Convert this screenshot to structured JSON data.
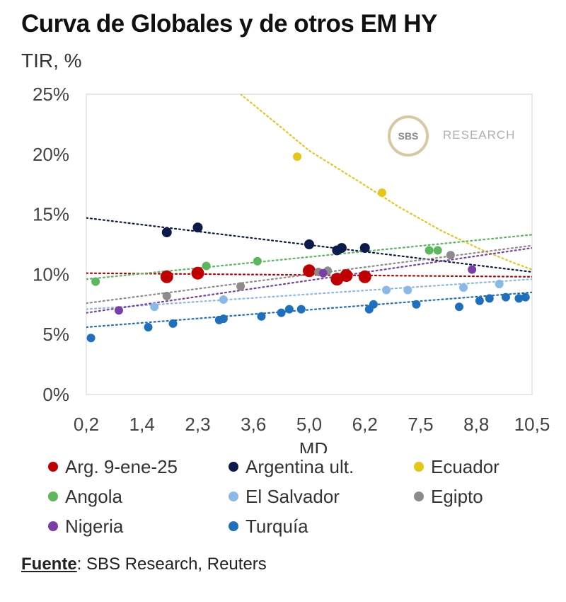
{
  "header": {
    "title": "Curva de Globales y de otros EM HY",
    "subtitle": "TIR, %"
  },
  "logo": {
    "mark": "SBS",
    "text": "RESEARCH"
  },
  "source": {
    "label": "Fuente",
    "text": ": SBS Research, Reuters"
  },
  "chart_data": {
    "type": "scatter",
    "title": "Curva de Globales y de otros EM HY",
    "xlabel": "MD",
    "ylabel": "TIR, %",
    "xlim": [
      0.2,
      10.5
    ],
    "ylim": [
      0,
      25
    ],
    "x_ticks": [
      0.2,
      1.4,
      2.3,
      3.6,
      5.0,
      6.2,
      7.5,
      8.8,
      10.5
    ],
    "x_tick_labels": [
      "0,2",
      "1,4",
      "2,3",
      "3,6",
      "5,0",
      "6,2",
      "7,5",
      "8,8",
      "10,5"
    ],
    "y_ticks": [
      0,
      5,
      10,
      15,
      20,
      25
    ],
    "y_tick_labels": [
      "0%",
      "5%",
      "10%",
      "15%",
      "20%",
      "25%"
    ],
    "legend_position": "bottom",
    "series": [
      {
        "name": "Arg. 9-ene-25",
        "color": "#c00000",
        "size": 9,
        "points": [
          [
            1.8,
            9.8
          ],
          [
            2.3,
            10.1
          ],
          [
            5.0,
            10.3
          ],
          [
            5.6,
            9.6
          ],
          [
            5.8,
            9.9
          ],
          [
            6.2,
            9.8
          ]
        ],
        "trend": [
          [
            0.2,
            10.1
          ],
          [
            10.5,
            9.8
          ]
        ]
      },
      {
        "name": "Argentina ult.",
        "color": "#0d1b4c",
        "size": 7,
        "points": [
          [
            1.8,
            13.5
          ],
          [
            2.3,
            13.9
          ],
          [
            5.0,
            12.5
          ],
          [
            5.6,
            12.0
          ],
          [
            5.7,
            12.2
          ],
          [
            6.2,
            12.2
          ]
        ],
        "trend": [
          [
            0.2,
            14.7
          ],
          [
            10.5,
            10.2
          ]
        ]
      },
      {
        "name": "Ecuador",
        "color": "#e6c619",
        "size": 6,
        "points": [
          [
            4.7,
            19.8
          ],
          [
            6.6,
            16.8
          ]
        ],
        "trend": [
          [
            3.3,
            25.0
          ],
          [
            4.2,
            22.5
          ],
          [
            5.0,
            20.3
          ],
          [
            6.0,
            17.9
          ],
          [
            7.0,
            15.6
          ],
          [
            8.0,
            13.6
          ],
          [
            9.0,
            12.0
          ],
          [
            10.0,
            10.9
          ],
          [
            10.5,
            10.4
          ]
        ]
      },
      {
        "name": "Angola",
        "color": "#5cb85c",
        "size": 6,
        "points": [
          [
            0.4,
            9.4
          ],
          [
            2.5,
            10.7
          ],
          [
            3.7,
            11.1
          ],
          [
            7.7,
            12.0
          ],
          [
            7.9,
            12.0
          ]
        ],
        "trend": [
          [
            0.2,
            9.6
          ],
          [
            10.5,
            13.3
          ]
        ]
      },
      {
        "name": "El Salvador",
        "color": "#8ab9e8",
        "size": 6,
        "points": [
          [
            1.6,
            7.3
          ],
          [
            2.9,
            7.9
          ],
          [
            6.7,
            8.7
          ],
          [
            7.2,
            8.7
          ],
          [
            8.5,
            8.9
          ],
          [
            9.5,
            9.2
          ]
        ],
        "trend": [
          [
            0.2,
            7.1
          ],
          [
            10.5,
            9.6
          ]
        ]
      },
      {
        "name": "Egipto",
        "color": "#8c8c8c",
        "size": 6,
        "points": [
          [
            1.8,
            8.2
          ],
          [
            3.3,
            9.0
          ],
          [
            5.2,
            10.2
          ],
          [
            5.4,
            10.3
          ],
          [
            8.2,
            11.6
          ]
        ],
        "trend": [
          [
            0.2,
            7.6
          ],
          [
            10.5,
            12.4
          ]
        ]
      },
      {
        "name": "Nigeria",
        "color": "#7a3fa6",
        "size": 6,
        "points": [
          [
            0.9,
            7.0
          ],
          [
            5.3,
            10.1
          ],
          [
            8.7,
            10.4
          ]
        ],
        "trend": [
          [
            0.2,
            6.8
          ],
          [
            10.5,
            12.2
          ]
        ]
      },
      {
        "name": "Turquía",
        "color": "#1f6fbf",
        "size": 6,
        "points": [
          [
            0.3,
            4.7
          ],
          [
            1.5,
            5.6
          ],
          [
            1.9,
            5.9
          ],
          [
            2.8,
            6.2
          ],
          [
            2.9,
            6.3
          ],
          [
            3.8,
            6.5
          ],
          [
            4.3,
            6.8
          ],
          [
            4.5,
            7.1
          ],
          [
            4.8,
            7.1
          ],
          [
            6.3,
            7.1
          ],
          [
            6.4,
            7.5
          ],
          [
            7.4,
            7.5
          ],
          [
            8.4,
            7.3
          ],
          [
            8.9,
            7.8
          ],
          [
            9.2,
            8.0
          ],
          [
            9.7,
            8.1
          ],
          [
            10.1,
            8.0
          ],
          [
            10.3,
            8.1
          ]
        ],
        "trend": [
          [
            0.2,
            5.6
          ],
          [
            10.5,
            8.5
          ]
        ]
      }
    ]
  }
}
